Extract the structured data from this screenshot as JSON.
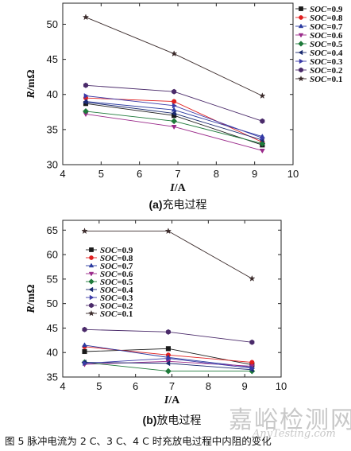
{
  "chart_data": [
    {
      "type": "line",
      "subtitle_prefix": "(a)",
      "subtitle": "充电过程",
      "xlabel": "I",
      "xunit": "/A",
      "ylabel": "R",
      "yunit": "/mΩ",
      "xlim": [
        4,
        10
      ],
      "ylim": [
        30,
        53
      ],
      "xticks": [
        4,
        5,
        6,
        7,
        8,
        9,
        10
      ],
      "yticks": [
        30,
        35,
        40,
        45,
        50
      ],
      "legend_position": "right-outside",
      "x": [
        4.6,
        6.9,
        9.2
      ],
      "series": [
        {
          "name": "SOC=0.9",
          "marker": "square",
          "color": "#1a1a1a",
          "values": [
            38.7,
            37.0,
            32.8
          ]
        },
        {
          "name": "SOC=0.8",
          "marker": "circle",
          "color": "#e02020",
          "values": [
            39.5,
            39.0,
            33.2
          ]
        },
        {
          "name": "SOC=0.7",
          "marker": "triangle-up",
          "color": "#2a3aa0",
          "values": [
            39.0,
            37.8,
            34.0
          ]
        },
        {
          "name": "SOC=0.6",
          "marker": "triangle-down",
          "color": "#9a2a8a",
          "values": [
            37.2,
            35.4,
            32.0
          ]
        },
        {
          "name": "SOC=0.5",
          "marker": "diamond",
          "color": "#1e7a3a",
          "values": [
            37.6,
            36.2,
            33.0
          ]
        },
        {
          "name": "SOC=0.4",
          "marker": "triangle-left",
          "color": "#1a2a70",
          "values": [
            38.9,
            37.3,
            33.5
          ]
        },
        {
          "name": "SOC=0.3",
          "marker": "triangle-right",
          "color": "#3a3aa8",
          "values": [
            39.8,
            38.4,
            33.8
          ]
        },
        {
          "name": "SOC=0.2",
          "marker": "hexagon",
          "color": "#4a2a6a",
          "values": [
            41.3,
            40.4,
            36.2
          ]
        },
        {
          "name": "SOC=0.1",
          "marker": "star",
          "color": "#3a2a2a",
          "values": [
            51.0,
            45.8,
            39.8
          ]
        }
      ]
    },
    {
      "type": "line",
      "subtitle_prefix": "(b)",
      "subtitle": "放电过程",
      "xlabel": "I",
      "xunit": "/A",
      "ylabel": "R",
      "yunit": "/mΩ",
      "xlim": [
        4,
        10
      ],
      "ylim": [
        35,
        67
      ],
      "xticks": [
        4,
        5,
        6,
        7,
        8,
        9,
        10
      ],
      "yticks": [
        35,
        40,
        45,
        50,
        55,
        60,
        65
      ],
      "legend_position": "upper-left",
      "x": [
        4.6,
        6.9,
        9.2
      ],
      "series": [
        {
          "name": "SOC=0.9",
          "marker": "square",
          "color": "#1a1a1a",
          "values": [
            40.2,
            40.8,
            37.5
          ]
        },
        {
          "name": "SOC=0.8",
          "marker": "circle",
          "color": "#e02020",
          "values": [
            41.2,
            39.5,
            38.0
          ]
        },
        {
          "name": "SOC=0.7",
          "marker": "triangle-up",
          "color": "#2a3aa0",
          "values": [
            41.5,
            39.0,
            37.0
          ]
        },
        {
          "name": "SOC=0.6",
          "marker": "triangle-down",
          "color": "#9a2a8a",
          "values": [
            37.6,
            38.2,
            37.2
          ]
        },
        {
          "name": "SOC=0.5",
          "marker": "diamond",
          "color": "#1e7a3a",
          "values": [
            38.0,
            36.2,
            36.2
          ]
        },
        {
          "name": "SOC=0.4",
          "marker": "triangle-left",
          "color": "#1a2a70",
          "values": [
            38.0,
            37.8,
            36.5
          ]
        },
        {
          "name": "SOC=0.3",
          "marker": "triangle-right",
          "color": "#3a3aa8",
          "values": [
            37.8,
            38.8,
            36.8
          ]
        },
        {
          "name": "SOC=0.2",
          "marker": "hexagon",
          "color": "#4a2a6a",
          "values": [
            44.7,
            44.2,
            42.1
          ]
        },
        {
          "name": "SOC=0.1",
          "marker": "star",
          "color": "#3a2a2a",
          "values": [
            64.8,
            64.8,
            55.1
          ]
        }
      ]
    }
  ],
  "figure_caption": "图 5    脉冲电流为 2 C、3 C、4 C 时充放电过程中内阻的变化",
  "watermark": {
    "text": "嘉峪检测网",
    "url": "AnyTesting.com"
  }
}
